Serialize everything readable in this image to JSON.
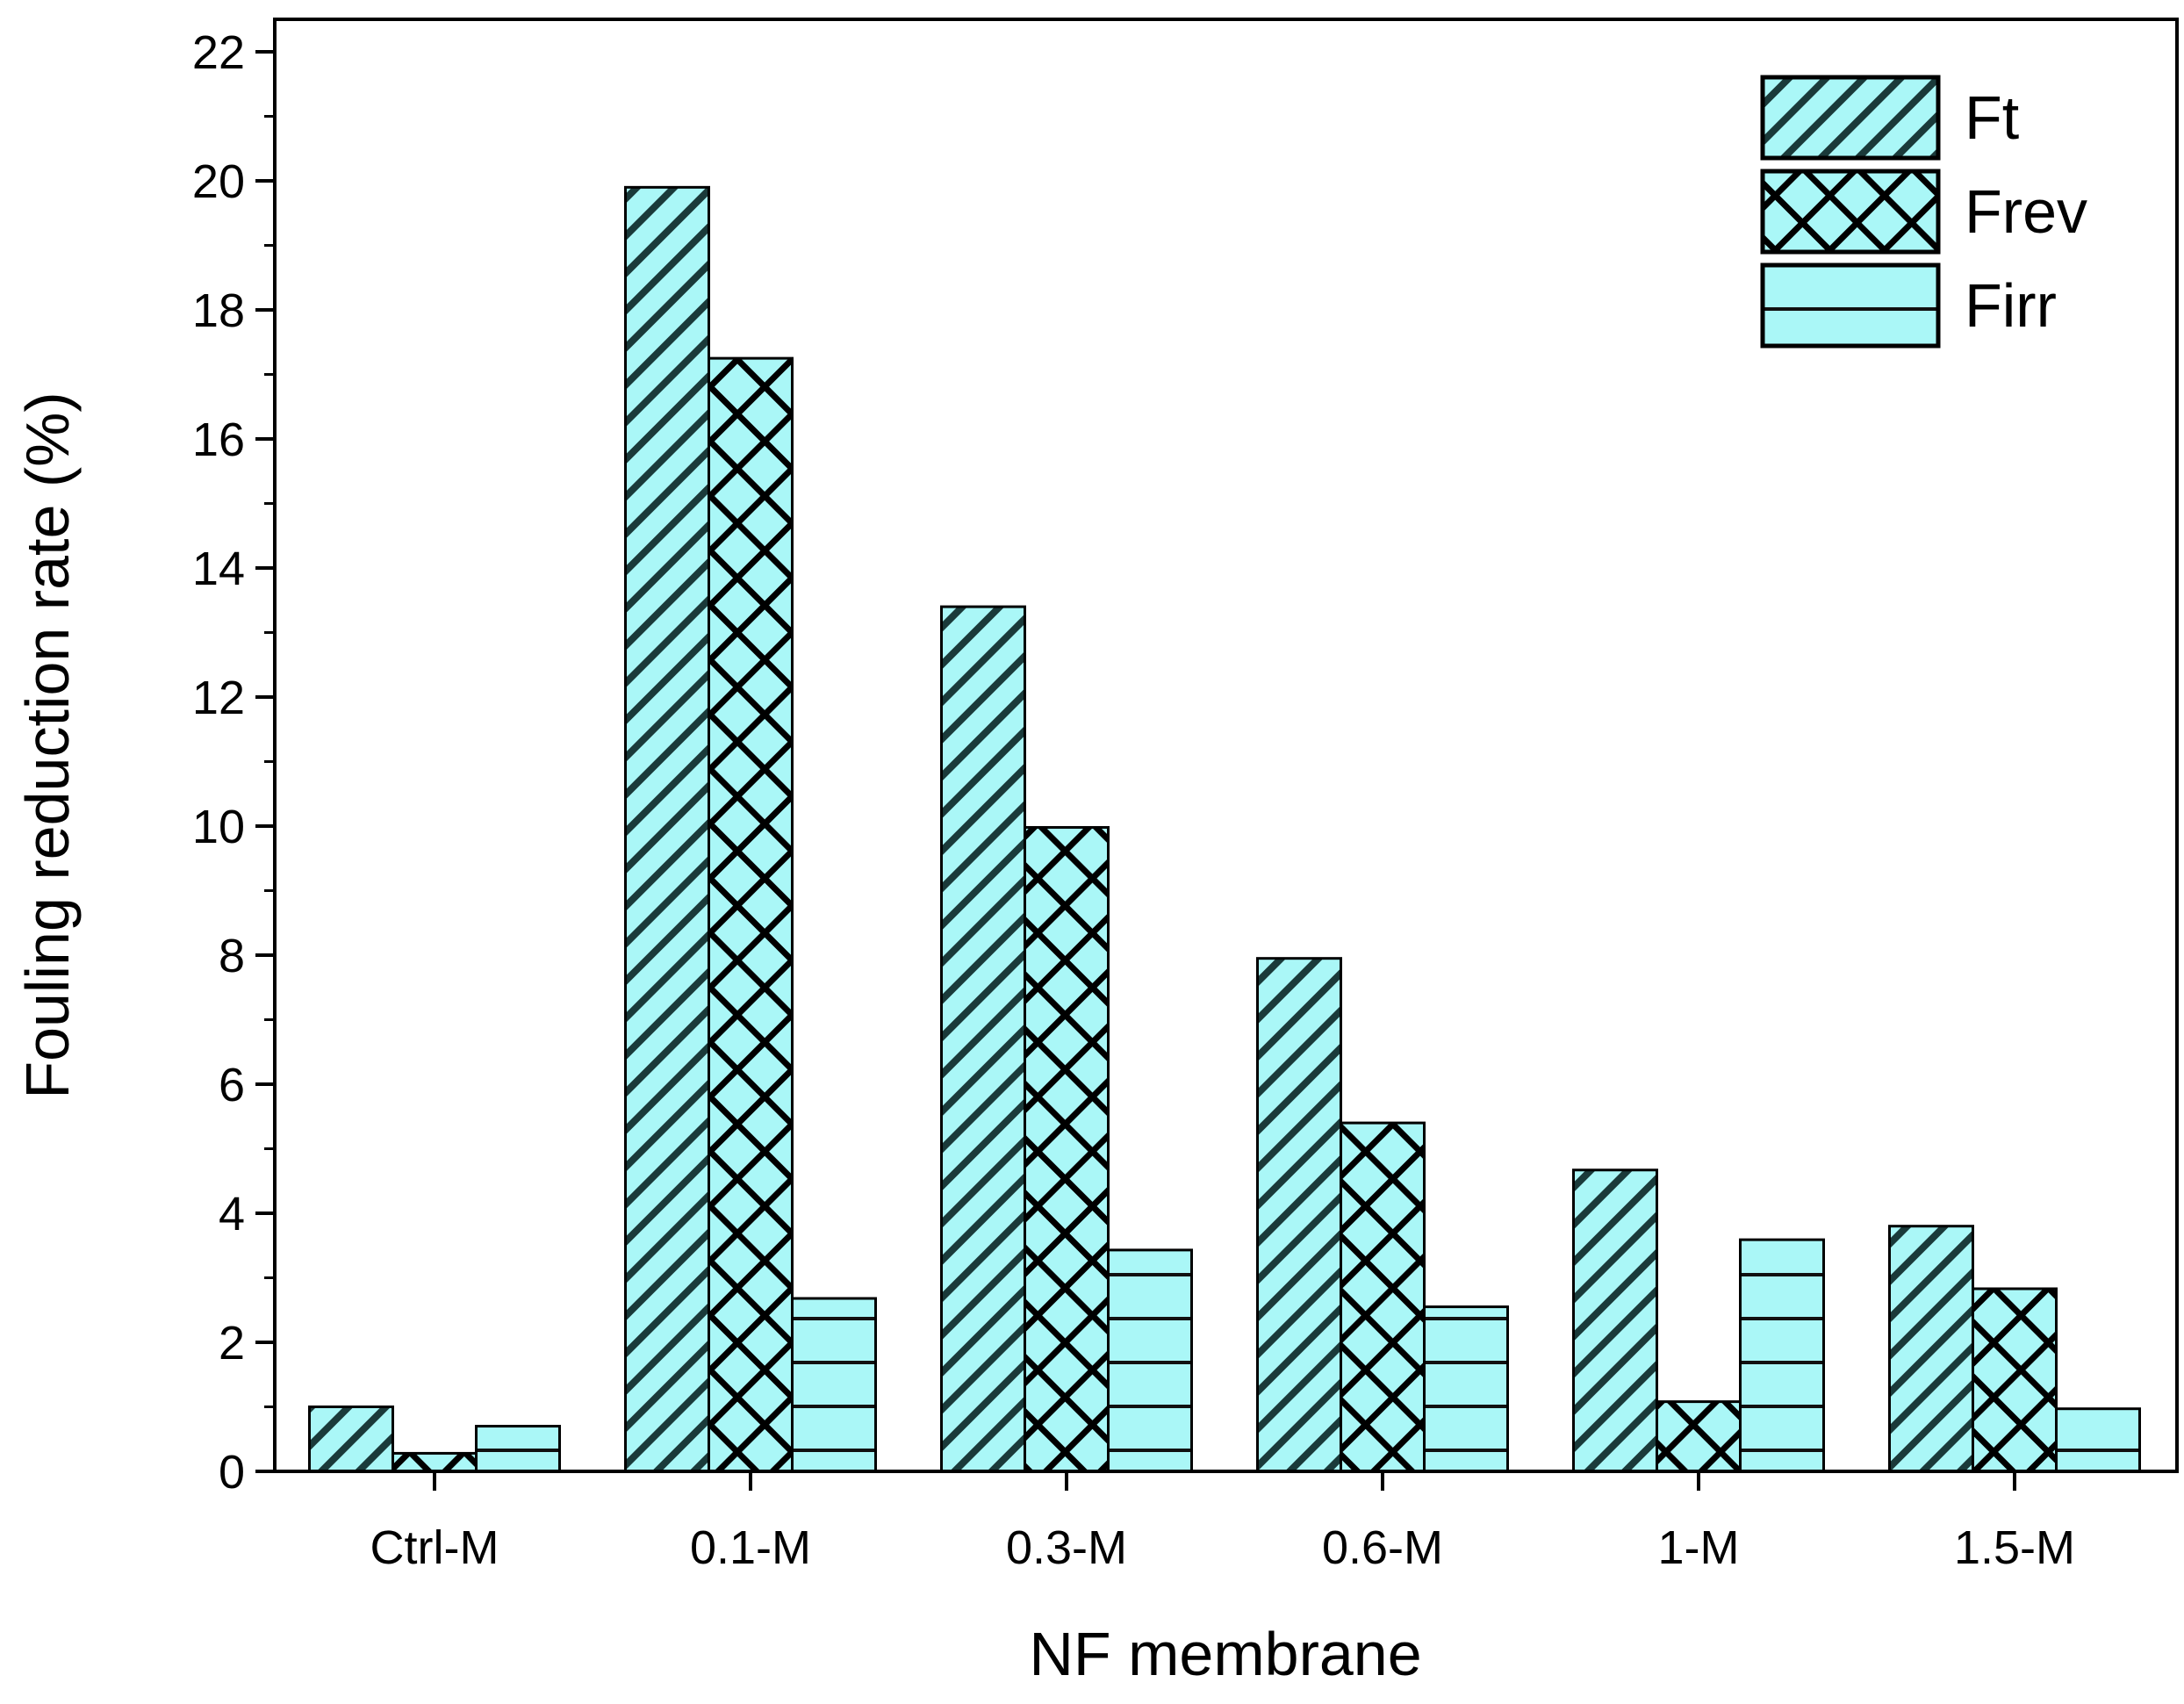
{
  "chart_data": {
    "type": "bar",
    "title": "",
    "xlabel": "NF membrane",
    "ylabel": "Fouling reduction rate (%)",
    "ylim": [
      0,
      22
    ],
    "yticks": [
      0,
      2,
      4,
      6,
      8,
      10,
      12,
      14,
      16,
      18,
      20,
      22
    ],
    "grid": false,
    "legend_position": "top-right",
    "categories": [
      "Ctrl-M",
      "0.1-M",
      "0.3-M",
      "0.6-M",
      "1-M",
      "1.5-M"
    ],
    "series": [
      {
        "name": "Ft",
        "pattern": "diagonal-hatch",
        "color": "#aaf7f7",
        "values": [
          1.0,
          19.9,
          13.4,
          7.95,
          4.67,
          3.8
        ]
      },
      {
        "name": "Frev",
        "pattern": "cross-hatch",
        "color": "#aaf7f7",
        "values": [
          0.28,
          17.25,
          9.98,
          5.4,
          1.08,
          2.83
        ]
      },
      {
        "name": "Firr",
        "pattern": "horizontal-lines",
        "color": "#aaf7f7",
        "values": [
          0.7,
          2.68,
          3.43,
          2.55,
          3.59,
          0.97
        ]
      }
    ]
  }
}
